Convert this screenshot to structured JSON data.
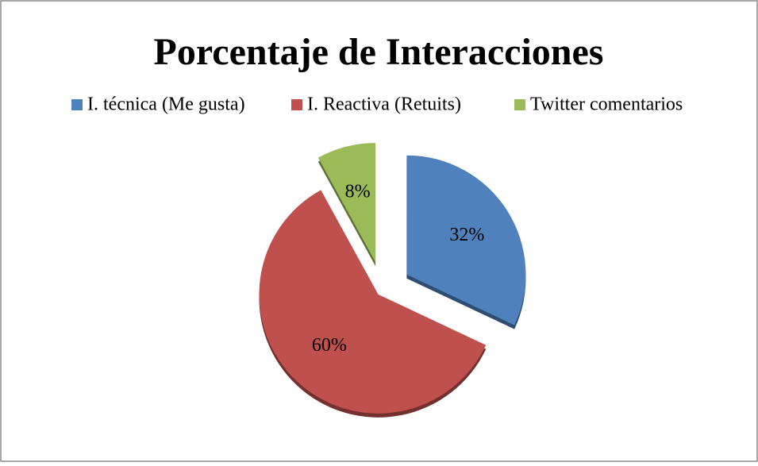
{
  "chart_data": {
    "type": "pie",
    "title": "Porcentaje de Interacciones",
    "categories": [
      "I. técnica (Me gusta)",
      "I. Reactiva (Retuits)",
      "Twitter comentarios"
    ],
    "values": [
      32,
      60,
      8
    ],
    "value_labels": [
      "32%",
      "60%",
      "8%"
    ],
    "colors": [
      "#4f81bd",
      "#c0504d",
      "#9bbb59"
    ],
    "legend": "top"
  }
}
